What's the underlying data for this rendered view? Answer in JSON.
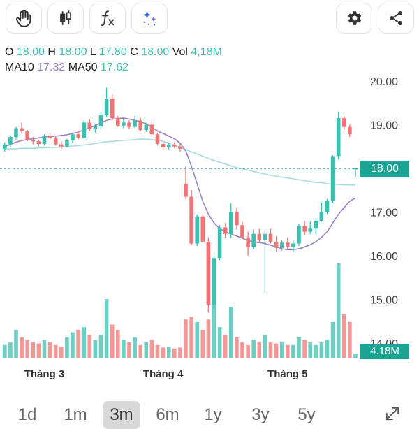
{
  "toolbar": {
    "tools": [
      "hand-icon",
      "candlestick-icon",
      "function-icon",
      "sparkle-icon"
    ],
    "actions": [
      "gear-icon",
      "share-icon"
    ]
  },
  "ohlc": {
    "o_label": "O",
    "o_value": "18.00",
    "h_label": "H",
    "h_value": "18.00",
    "l_label": "L",
    "l_value": "17.80",
    "c_label": "C",
    "c_value": "18.00",
    "vol_label": "Vol",
    "vol_value": "4,18M",
    "ma10_label": "MA10",
    "ma10_value": "17.32",
    "ma50_label": "MA50",
    "ma50_value": "17.62"
  },
  "price_tag": "18.00",
  "volume_tag": "4.18M",
  "ranges": {
    "r1": "1d",
    "r2": "1m",
    "r3": "3m",
    "r4": "6m",
    "r5": "1y",
    "r6": "3y",
    "r7": "5y",
    "active": "3m"
  },
  "colors": {
    "up": "#3bbfb0",
    "down": "#ef7474",
    "ma10": "#9b7fc6",
    "ma50": "#a8dbe6",
    "current_line": "#1aa493"
  },
  "chart_data": {
    "type": "candlestick",
    "y_ticks": [
      "20.00",
      "19.00",
      "18.00",
      "17.00",
      "16.00",
      "15.00",
      "14.00"
    ],
    "ylim": [
      14,
      20.5
    ],
    "x_labels": [
      {
        "label": "Tháng 3",
        "index": 7
      },
      {
        "label": "Tháng 4",
        "index": 28
      },
      {
        "label": "Tháng 5",
        "index": 50
      }
    ],
    "current_price": 18.0,
    "candles": [
      [
        18.45,
        18.6,
        18.38,
        18.55,
        0.25
      ],
      [
        18.55,
        18.75,
        18.5,
        18.72,
        0.3
      ],
      [
        18.72,
        18.95,
        18.66,
        18.92,
        0.55
      ],
      [
        18.92,
        19.05,
        18.8,
        18.85,
        0.4
      ],
      [
        18.85,
        18.88,
        18.62,
        18.66,
        0.35
      ],
      [
        18.66,
        18.72,
        18.55,
        18.62,
        0.3
      ],
      [
        18.62,
        18.65,
        18.5,
        18.56,
        0.28
      ],
      [
        18.56,
        18.78,
        18.52,
        18.74,
        0.35
      ],
      [
        18.74,
        18.82,
        18.66,
        18.7,
        0.3
      ],
      [
        18.7,
        18.75,
        18.52,
        18.55,
        0.25
      ],
      [
        18.55,
        18.62,
        18.44,
        18.5,
        0.22
      ],
      [
        18.5,
        18.68,
        18.48,
        18.64,
        0.4
      ],
      [
        18.64,
        18.82,
        18.58,
        18.78,
        0.5
      ],
      [
        18.78,
        18.86,
        18.66,
        18.7,
        0.55
      ],
      [
        18.7,
        19.1,
        18.68,
        19.05,
        0.6
      ],
      [
        19.05,
        19.12,
        18.86,
        18.9,
        0.45
      ],
      [
        18.9,
        19.02,
        18.82,
        18.96,
        0.35
      ],
      [
        18.96,
        19.3,
        18.9,
        19.22,
        0.45
      ],
      [
        19.22,
        19.85,
        19.18,
        19.6,
        1.15
      ],
      [
        19.6,
        19.7,
        19.1,
        19.15,
        0.65
      ],
      [
        19.15,
        19.2,
        18.95,
        18.98,
        0.55
      ],
      [
        18.98,
        19.12,
        18.92,
        19.05,
        0.35
      ],
      [
        19.05,
        19.1,
        18.9,
        18.95,
        0.3
      ],
      [
        18.95,
        19.2,
        18.92,
        19.1,
        0.4
      ],
      [
        19.1,
        19.15,
        18.85,
        18.88,
        0.25
      ],
      [
        18.88,
        19.05,
        18.84,
        19.0,
        0.3
      ],
      [
        19.0,
        19.08,
        18.72,
        18.78,
        0.35
      ],
      [
        18.78,
        18.82,
        18.52,
        18.56,
        0.25
      ],
      [
        18.56,
        18.62,
        18.42,
        18.48,
        0.2
      ],
      [
        18.48,
        18.58,
        18.44,
        18.54,
        0.22
      ],
      [
        18.54,
        18.6,
        18.46,
        18.5,
        0.18
      ],
      [
        18.5,
        18.56,
        18.38,
        18.45,
        0.2
      ],
      [
        17.65,
        18.05,
        17.3,
        17.35,
        0.75
      ],
      [
        17.35,
        17.5,
        16.25,
        16.28,
        0.8
      ],
      [
        16.28,
        16.95,
        16.22,
        16.9,
        0.7
      ],
      [
        16.9,
        16.95,
        16.3,
        16.32,
        0.55
      ],
      [
        16.32,
        16.42,
        14.7,
        14.88,
        0.75
      ],
      [
        14.88,
        16.0,
        14.8,
        15.95,
        1.1
      ],
      [
        15.95,
        16.7,
        15.9,
        16.65,
        0.6
      ],
      [
        16.65,
        16.75,
        16.4,
        16.5,
        0.45
      ],
      [
        16.5,
        17.2,
        16.4,
        17.0,
        1.0
      ],
      [
        17.0,
        17.1,
        16.6,
        16.7,
        0.4
      ],
      [
        16.7,
        16.78,
        16.38,
        16.42,
        0.3
      ],
      [
        16.42,
        16.55,
        16.0,
        16.2,
        0.25
      ],
      [
        16.2,
        16.6,
        16.15,
        16.5,
        0.35
      ],
      [
        16.5,
        16.62,
        16.3,
        16.35,
        0.3
      ],
      [
        16.35,
        16.58,
        15.15,
        16.5,
        0.45
      ],
      [
        16.5,
        16.62,
        16.28,
        16.32,
        0.3
      ],
      [
        16.32,
        16.45,
        16.1,
        16.18,
        0.28
      ],
      [
        16.18,
        16.35,
        16.12,
        16.3,
        0.3
      ],
      [
        16.3,
        16.42,
        16.15,
        16.2,
        0.25
      ],
      [
        16.2,
        16.35,
        16.08,
        16.28,
        0.25
      ],
      [
        16.28,
        16.72,
        16.22,
        16.68,
        0.4
      ],
      [
        16.68,
        16.8,
        16.48,
        16.55,
        0.35
      ],
      [
        16.55,
        16.78,
        16.5,
        16.62,
        0.3
      ],
      [
        16.62,
        16.85,
        16.5,
        16.8,
        0.25
      ],
      [
        16.8,
        17.22,
        16.78,
        17.0,
        0.3
      ],
      [
        17.0,
        17.3,
        16.95,
        17.25,
        0.35
      ],
      [
        17.25,
        18.3,
        17.2,
        18.28,
        0.7
      ],
      [
        18.28,
        19.3,
        18.2,
        19.15,
        1.85
      ],
      [
        19.15,
        19.2,
        18.88,
        18.95,
        0.85
      ],
      [
        18.95,
        19.0,
        18.72,
        18.78,
        0.7
      ],
      [
        18.0,
        18.0,
        17.8,
        18.0,
        0.08
      ]
    ],
    "ma10": [
      18.5,
      18.55,
      18.6,
      18.64,
      18.66,
      18.68,
      18.7,
      18.72,
      18.73,
      18.74,
      18.75,
      18.77,
      18.8,
      18.83,
      18.88,
      18.93,
      18.98,
      19.04,
      19.1,
      19.13,
      19.14,
      19.15,
      19.13,
      19.1,
      19.07,
      19.02,
      18.94,
      18.86,
      18.8,
      18.74,
      18.68,
      18.58,
      18.4,
      18.05,
      17.65,
      17.25,
      16.95,
      16.75,
      16.62,
      16.55,
      16.5,
      16.45,
      16.4,
      16.35,
      16.32,
      16.3,
      16.28,
      16.24,
      16.2,
      16.16,
      16.14,
      16.14,
      16.16,
      16.2,
      16.25,
      16.32,
      16.42,
      16.55,
      16.75,
      16.95,
      17.1,
      17.25,
      17.32
    ],
    "ma50": [
      18.45,
      18.45,
      18.45,
      18.46,
      18.46,
      18.46,
      18.47,
      18.47,
      18.48,
      18.48,
      18.49,
      18.5,
      18.51,
      18.52,
      18.54,
      18.55,
      18.57,
      18.59,
      18.61,
      18.62,
      18.63,
      18.64,
      18.65,
      18.66,
      18.67,
      18.67,
      18.66,
      18.65,
      18.62,
      18.58,
      18.53,
      18.48,
      18.43,
      18.38,
      18.33,
      18.28,
      18.23,
      18.18,
      18.14,
      18.1,
      18.06,
      18.02,
      17.99,
      17.96,
      17.93,
      17.9,
      17.87,
      17.84,
      17.82,
      17.8,
      17.78,
      17.76,
      17.74,
      17.72,
      17.7,
      17.68,
      17.67,
      17.65,
      17.64,
      17.63,
      17.62,
      17.62,
      17.62
    ]
  }
}
